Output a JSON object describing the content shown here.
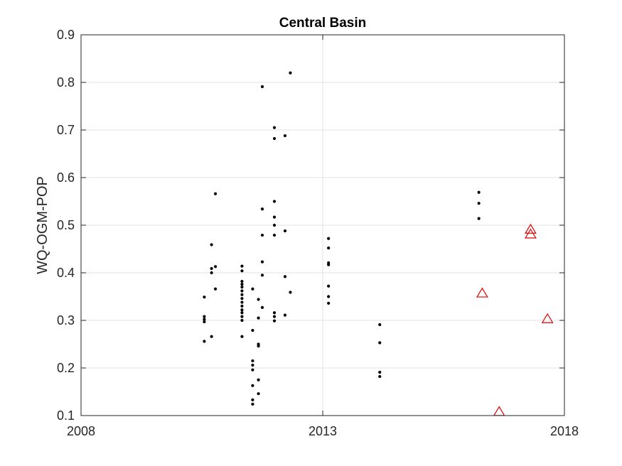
{
  "chart_data": {
    "type": "scatter",
    "title": "Central Basin",
    "xlabel": "",
    "ylabel": "WQ-OGM-POP",
    "xlim": [
      2008,
      2018
    ],
    "ylim": [
      0.1,
      0.9
    ],
    "xticks": [
      2008,
      2013,
      2018
    ],
    "yticks": [
      0.1,
      0.2,
      0.3,
      0.4,
      0.5,
      0.6,
      0.7,
      0.8,
      0.9
    ],
    "xtick_labels": [
      "2008",
      "2013",
      "2018"
    ],
    "ytick_labels": [
      "0.1",
      "0.2",
      "0.3",
      "0.4",
      "0.5",
      "0.6",
      "0.7",
      "0.8",
      "0.9"
    ],
    "grid": true,
    "series": [
      {
        "marker": "dot",
        "color": "#000000",
        "points": [
          [
            2010.55,
            0.349
          ],
          [
            2010.55,
            0.308
          ],
          [
            2010.55,
            0.302
          ],
          [
            2010.55,
            0.297
          ],
          [
            2010.55,
            0.256
          ],
          [
            2010.7,
            0.459
          ],
          [
            2010.7,
            0.409
          ],
          [
            2010.7,
            0.4
          ],
          [
            2010.7,
            0.266
          ],
          [
            2010.78,
            0.566
          ],
          [
            2010.78,
            0.413
          ],
          [
            2010.78,
            0.366
          ],
          [
            2011.33,
            0.414
          ],
          [
            2011.33,
            0.404
          ],
          [
            2011.33,
            0.382
          ],
          [
            2011.33,
            0.376
          ],
          [
            2011.33,
            0.37
          ],
          [
            2011.33,
            0.362
          ],
          [
            2011.33,
            0.354
          ],
          [
            2011.33,
            0.346
          ],
          [
            2011.33,
            0.338
          ],
          [
            2011.33,
            0.33
          ],
          [
            2011.33,
            0.322
          ],
          [
            2011.33,
            0.316
          ],
          [
            2011.33,
            0.308
          ],
          [
            2011.33,
            0.3
          ],
          [
            2011.33,
            0.266
          ],
          [
            2011.55,
            0.366
          ],
          [
            2011.55,
            0.279
          ],
          [
            2011.55,
            0.215
          ],
          [
            2011.55,
            0.206
          ],
          [
            2011.55,
            0.196
          ],
          [
            2011.55,
            0.163
          ],
          [
            2011.55,
            0.133
          ],
          [
            2011.55,
            0.124
          ],
          [
            2011.67,
            0.344
          ],
          [
            2011.67,
            0.305
          ],
          [
            2011.67,
            0.25
          ],
          [
            2011.67,
            0.246
          ],
          [
            2011.67,
            0.175
          ],
          [
            2011.67,
            0.146
          ],
          [
            2011.75,
            0.791
          ],
          [
            2011.75,
            0.534
          ],
          [
            2011.75,
            0.479
          ],
          [
            2011.75,
            0.423
          ],
          [
            2011.75,
            0.395
          ],
          [
            2011.75,
            0.327
          ],
          [
            2012.0,
            0.705
          ],
          [
            2012.0,
            0.682
          ],
          [
            2012.0,
            0.55
          ],
          [
            2012.0,
            0.517
          ],
          [
            2012.0,
            0.5
          ],
          [
            2012.0,
            0.479
          ],
          [
            2012.0,
            0.316
          ],
          [
            2012.0,
            0.308
          ],
          [
            2012.0,
            0.299
          ],
          [
            2012.22,
            0.688
          ],
          [
            2012.22,
            0.488
          ],
          [
            2012.22,
            0.392
          ],
          [
            2012.22,
            0.311
          ],
          [
            2012.33,
            0.82
          ],
          [
            2012.33,
            0.359
          ],
          [
            2013.12,
            0.472
          ],
          [
            2013.12,
            0.452
          ],
          [
            2013.12,
            0.421
          ],
          [
            2013.12,
            0.417
          ],
          [
            2013.12,
            0.372
          ],
          [
            2013.12,
            0.35
          ],
          [
            2013.12,
            0.336
          ],
          [
            2014.18,
            0.291
          ],
          [
            2014.18,
            0.253
          ],
          [
            2014.18,
            0.191
          ],
          [
            2014.18,
            0.182
          ],
          [
            2016.23,
            0.569
          ],
          [
            2016.23,
            0.546
          ],
          [
            2016.23,
            0.514
          ]
        ]
      },
      {
        "marker": "triangle",
        "color": "#e00000",
        "points": [
          [
            2016.3,
            0.357
          ],
          [
            2016.65,
            0.108
          ],
          [
            2017.3,
            0.491
          ],
          [
            2017.3,
            0.481
          ],
          [
            2017.65,
            0.303
          ]
        ]
      }
    ]
  }
}
